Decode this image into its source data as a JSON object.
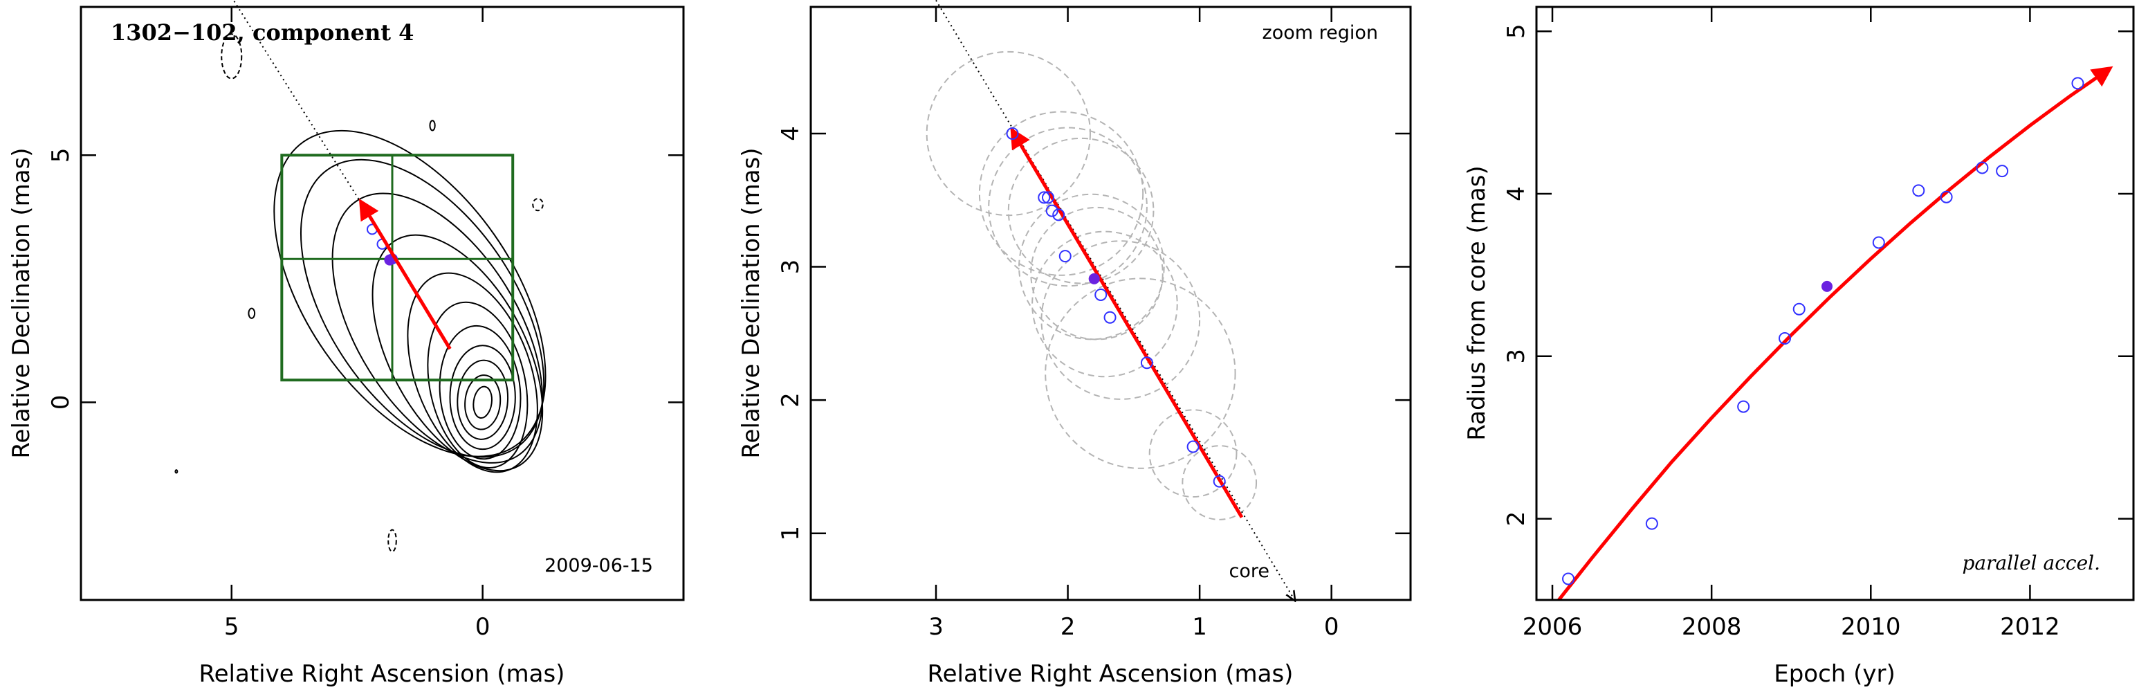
{
  "chart_data": [
    {
      "type": "contour-map",
      "title": "1302−102, component 4",
      "date_label": "2009-06-15",
      "xlabel": "Relative Right Ascension (mas)",
      "ylabel": "Relative Declination (mas)",
      "xlim": [
        8.0,
        -4.0
      ],
      "ylim": [
        -4.0,
        8.0
      ],
      "x_ticks": [
        {
          "v": 5,
          "label": "5"
        },
        {
          "v": 0,
          "label": "0"
        }
      ],
      "y_ticks": [
        {
          "v": 0,
          "label": "0"
        },
        {
          "v": 5,
          "label": "5"
        }
      ],
      "core": [
        0.0,
        0.0
      ],
      "jet_direction_line": {
        "from": [
          5.0,
          8.2
        ],
        "to": [
          2.4,
          4.0
        ]
      },
      "fit_arrow": {
        "from": [
          0.65,
          1.08
        ],
        "to": [
          2.42,
          4.05
        ]
      },
      "highlight_point": [
        1.85,
        2.88
      ],
      "points": [
        [
          2.2,
          3.5
        ],
        [
          2.0,
          3.2
        ],
        [
          1.8,
          2.9
        ]
      ],
      "zoom_box": {
        "x": [
          -0.6,
          4.0
        ],
        "y": [
          0.45,
          5.0
        ]
      },
      "zoom_gridlines": {
        "x": 1.8,
        "y": 2.9
      },
      "contour_colors": {
        "line": "#000000",
        "box": "#1f6b1f",
        "arrow": "#ff0000",
        "point": "#6a22e0"
      }
    },
    {
      "type": "scatter",
      "annotation": "zoom region",
      "core_label": "core",
      "xlabel": "Relative Right Ascension (mas)",
      "ylabel": "Relative Declination (mas)",
      "xlim": [
        3.95,
        -0.6
      ],
      "ylim": [
        0.5,
        4.95
      ],
      "x_ticks": [
        {
          "v": 3,
          "label": "3"
        },
        {
          "v": 2,
          "label": "2"
        },
        {
          "v": 1,
          "label": "1"
        },
        {
          "v": 0,
          "label": "0"
        }
      ],
      "y_ticks": [
        {
          "v": 1,
          "label": "1"
        },
        {
          "v": 2,
          "label": "2"
        },
        {
          "v": 3,
          "label": "3"
        },
        {
          "v": 4,
          "label": "4"
        }
      ],
      "points": [
        {
          "x": 2.42,
          "y": 4.0,
          "r": 0.62
        },
        {
          "x": 2.18,
          "y": 3.52,
          "r": 0.6
        },
        {
          "x": 2.15,
          "y": 3.52,
          "r": 0.6
        },
        {
          "x": 2.12,
          "y": 3.42,
          "r": 0.6
        },
        {
          "x": 2.07,
          "y": 3.39,
          "r": 0.55
        },
        {
          "x": 2.02,
          "y": 3.08,
          "r": 0.5
        },
        {
          "x": 1.75,
          "y": 2.79,
          "r": 0.55
        },
        {
          "x": 1.68,
          "y": 2.62,
          "r": 0.55
        },
        {
          "x": 1.4,
          "y": 2.28,
          "r": 0.7
        },
        {
          "x": 1.05,
          "y": 1.65,
          "r": 0.3
        },
        {
          "x": 0.85,
          "y": 1.39,
          "r": 0.22
        }
      ],
      "circle_centers": [
        {
          "x": 2.45,
          "y": 4.0,
          "r": 0.62
        },
        {
          "x": 2.05,
          "y": 3.55,
          "r": 0.62
        },
        {
          "x": 2.0,
          "y": 3.45,
          "r": 0.6
        },
        {
          "x": 1.9,
          "y": 3.42,
          "r": 0.55
        },
        {
          "x": 1.82,
          "y": 3.0,
          "r": 0.55
        },
        {
          "x": 1.78,
          "y": 2.95,
          "r": 0.5
        },
        {
          "x": 1.72,
          "y": 2.72,
          "r": 0.55
        },
        {
          "x": 1.6,
          "y": 2.6,
          "r": 0.6
        },
        {
          "x": 1.45,
          "y": 2.2,
          "r": 0.72
        },
        {
          "x": 1.05,
          "y": 1.6,
          "r": 0.33
        },
        {
          "x": 0.85,
          "y": 1.38,
          "r": 0.28
        }
      ],
      "highlight_point": {
        "x": 1.8,
        "y": 2.91
      },
      "direction_line": {
        "from": [
          3.0,
          5.0
        ],
        "to": [
          0.28,
          0.5
        ]
      },
      "fit_arrow": {
        "from": [
          0.68,
          1.12
        ],
        "to": [
          2.42,
          4.02
        ]
      },
      "colors": {
        "point": "#3232ff",
        "highlight": "#6a22e0",
        "arrow": "#ff0000",
        "circle": "#b4b4b4"
      }
    },
    {
      "type": "scatter",
      "annotation": "parallel accel.",
      "xlabel": "Epoch (yr)",
      "ylabel": "Radius from core (mas)",
      "xlim": [
        2005.8,
        2013.3
      ],
      "ylim": [
        1.5,
        5.15
      ],
      "x_ticks": [
        {
          "v": 2006,
          "label": "2006"
        },
        {
          "v": 2008,
          "label": "2008"
        },
        {
          "v": 2010,
          "label": "2010"
        },
        {
          "v": 2012,
          "label": "2012"
        }
      ],
      "y_ticks": [
        {
          "v": 2,
          "label": "2"
        },
        {
          "v": 3,
          "label": "3"
        },
        {
          "v": 4,
          "label": "4"
        },
        {
          "v": 5,
          "label": "5"
        }
      ],
      "points": [
        {
          "x": 2006.2,
          "y": 1.63
        },
        {
          "x": 2007.25,
          "y": 1.97
        },
        {
          "x": 2008.4,
          "y": 2.69
        },
        {
          "x": 2008.92,
          "y": 3.11
        },
        {
          "x": 2009.1,
          "y": 3.29
        },
        {
          "x": 2010.1,
          "y": 3.7
        },
        {
          "x": 2010.6,
          "y": 4.02
        },
        {
          "x": 2010.95,
          "y": 3.98
        },
        {
          "x": 2011.4,
          "y": 4.16
        },
        {
          "x": 2011.65,
          "y": 4.14
        },
        {
          "x": 2012.6,
          "y": 4.68
        }
      ],
      "highlight_point": {
        "x": 2009.45,
        "y": 3.43
      },
      "fit_curve": {
        "x": [
          2006.0,
          2006.5,
          2007.0,
          2007.5,
          2008.0,
          2008.5,
          2009.0,
          2009.5,
          2010.0,
          2010.5,
          2011.0,
          2011.5,
          2012.0,
          2012.5,
          2013.0
        ],
        "y": [
          1.45,
          1.76,
          2.06,
          2.35,
          2.62,
          2.88,
          3.13,
          3.37,
          3.6,
          3.82,
          4.03,
          4.23,
          4.42,
          4.6,
          4.77
        ]
      },
      "colors": {
        "point": "#3232ff",
        "highlight": "#6a22e0",
        "fit": "#ff0000"
      }
    }
  ]
}
